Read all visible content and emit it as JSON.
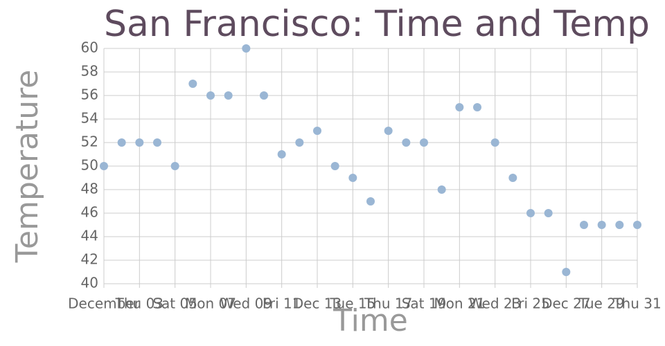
{
  "chart_data": {
    "type": "scatter",
    "title": "San Francisco: Time and Temp",
    "x_label": "Time",
    "y_label": "Temperature",
    "x": [
      1,
      2,
      3,
      4,
      5,
      6,
      7,
      8,
      9,
      10,
      11,
      12,
      13,
      14,
      15,
      16,
      17,
      18,
      19,
      20,
      21,
      22,
      23,
      24,
      25,
      26,
      27,
      28,
      29,
      30,
      31
    ],
    "values": [
      50,
      52,
      52,
      52,
      50,
      57,
      56,
      56,
      60,
      56,
      51,
      52,
      53,
      50,
      49,
      47,
      53,
      52,
      52,
      48,
      55,
      55,
      52,
      49,
      46,
      46,
      41,
      45,
      45,
      45,
      45
    ],
    "color": "#9ab6d4",
    "xlim": [
      1,
      31
    ],
    "xticks": [
      {
        "value": 1,
        "label": "December"
      },
      {
        "value": 3,
        "label": "Thu 03"
      },
      {
        "value": 5,
        "label": "Sat 05"
      },
      {
        "value": 7,
        "label": "Mon 07"
      },
      {
        "value": 9,
        "label": "Wed 09"
      },
      {
        "value": 11,
        "label": "Fri 11"
      },
      {
        "value": 13,
        "label": "Dec 13"
      },
      {
        "value": 15,
        "label": "Tue 15"
      },
      {
        "value": 17,
        "label": "Thu 17"
      },
      {
        "value": 19,
        "label": "Sat 19"
      },
      {
        "value": 21,
        "label": "Mon 21"
      },
      {
        "value": 23,
        "label": "Wed 23"
      },
      {
        "value": 25,
        "label": "Fri 25"
      },
      {
        "value": 27,
        "label": "Dec 27"
      },
      {
        "value": 29,
        "label": "Tue 29"
      },
      {
        "value": 31,
        "label": "Thu 31"
      }
    ],
    "ylim": [
      40,
      60
    ],
    "yticks": [
      40,
      42,
      44,
      46,
      48,
      50,
      52,
      54,
      56,
      58,
      60
    ],
    "grid": true
  }
}
